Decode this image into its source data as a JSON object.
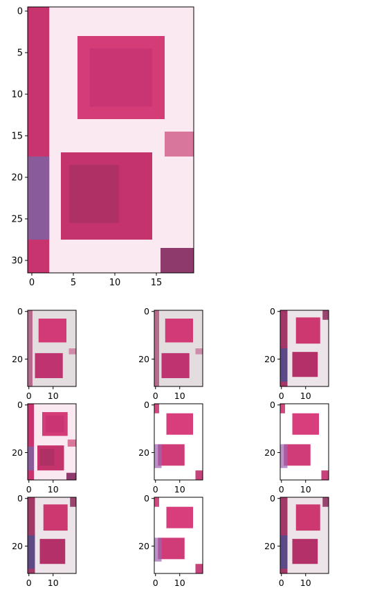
{
  "chart_data": [
    {
      "type": "image",
      "x_ticks": [
        0,
        5,
        10,
        15
      ],
      "y_ticks": [
        0,
        5,
        10,
        15,
        20,
        25,
        30
      ],
      "xlim": [
        -0.5,
        19.5
      ],
      "ylim": [
        31.5,
        -0.5
      ],
      "image_size": [
        20,
        32
      ],
      "content": "seven-segment digit 8"
    },
    {
      "type": "image",
      "x_ticks": [
        0,
        10
      ],
      "y_ticks": [
        0,
        20
      ],
      "xlim": [
        -0.5,
        19.5
      ],
      "ylim": [
        31.5,
        -0.5
      ],
      "content": "digit 8"
    },
    {
      "type": "image",
      "x_ticks": [
        0,
        10
      ],
      "y_ticks": [
        0,
        20
      ],
      "xlim": [
        -0.5,
        19.5
      ],
      "ylim": [
        31.5,
        -0.5
      ],
      "content": "digit 8"
    },
    {
      "type": "image",
      "x_ticks": [
        0,
        10
      ],
      "y_ticks": [
        0,
        20
      ],
      "xlim": [
        -0.5,
        19.5
      ],
      "ylim": [
        31.5,
        -0.5
      ],
      "content": "digit 8"
    },
    {
      "type": "image",
      "x_ticks": [
        0,
        10
      ],
      "y_ticks": [
        0,
        20
      ],
      "xlim": [
        -0.5,
        19.5
      ],
      "ylim": [
        31.5,
        -0.5
      ],
      "content": "digit 8"
    },
    {
      "type": "image",
      "x_ticks": [
        0,
        10
      ],
      "y_ticks": [
        0,
        20
      ],
      "xlim": [
        -0.5,
        19.5
      ],
      "ylim": [
        31.5,
        -0.5
      ],
      "content": "digit 9"
    },
    {
      "type": "image",
      "x_ticks": [
        0,
        10
      ],
      "y_ticks": [
        0,
        20
      ],
      "xlim": [
        -0.5,
        19.5
      ],
      "ylim": [
        31.5,
        -0.5
      ],
      "content": "digit 9"
    },
    {
      "type": "image",
      "x_ticks": [
        0,
        10
      ],
      "y_ticks": [
        0,
        20
      ],
      "xlim": [
        -0.5,
        19.5
      ],
      "ylim": [
        31.5,
        -0.5
      ],
      "content": "digit 8"
    },
    {
      "type": "image",
      "x_ticks": [
        0,
        10
      ],
      "y_ticks": [
        0,
        20
      ],
      "xlim": [
        -0.5,
        19.5
      ],
      "ylim": [
        31.5,
        -0.5
      ],
      "content": "digit 9"
    },
    {
      "type": "image",
      "x_ticks": [
        0,
        10
      ],
      "y_ticks": [
        0,
        20
      ],
      "xlim": [
        -0.5,
        19.5
      ],
      "ylim": [
        31.5,
        -0.5
      ],
      "content": "digit 8"
    }
  ],
  "colors": {
    "segment": "#fbe9f2",
    "segment_gray": "#e3dde0",
    "background": "#d23a75",
    "background_dark": "#a8305f",
    "edge_purple": "#7e5a98"
  }
}
